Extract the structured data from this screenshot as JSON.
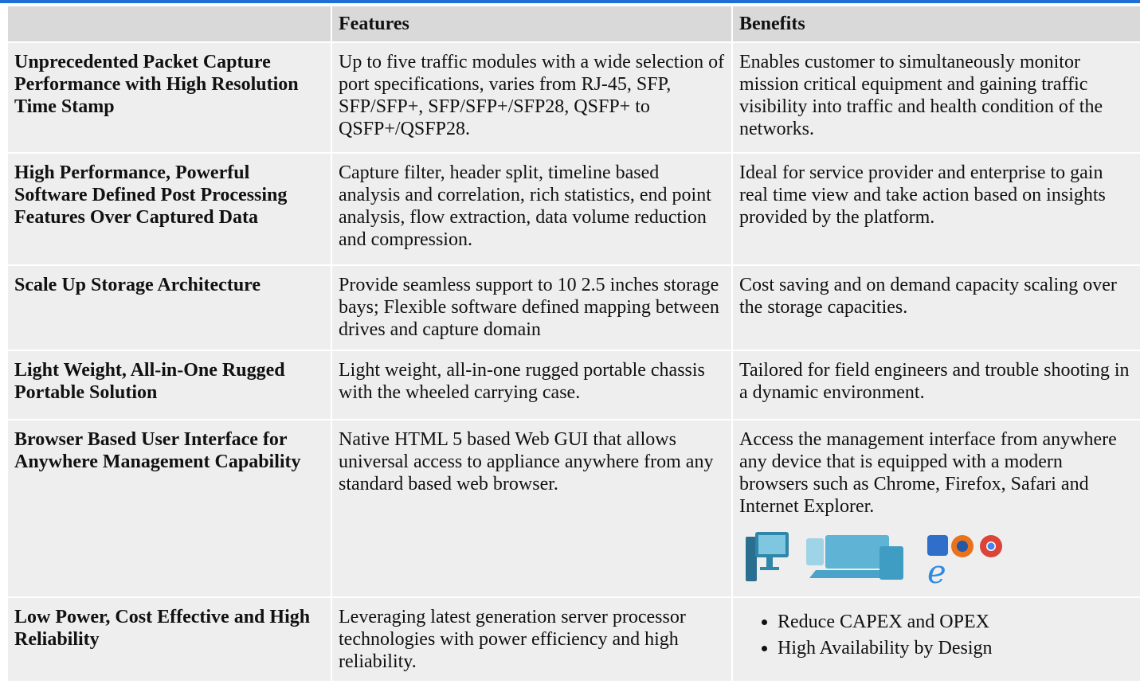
{
  "table": {
    "header": [
      "Features",
      "Benefits"
    ],
    "rows": [
      {
        "title": "Unprecedented Packet Capture Performance with High Resolution Time Stamp",
        "features": "Up to five traffic modules with a wide selection of port specifications, varies from RJ-45, SFP, SFP/SFP+, SFP/SFP+/SFP28, QSFP+ to QSFP+/QSFP28.",
        "benefits": "Enables customer to simultaneously monitor mission critical equipment and gaining traffic visibility into traffic and health condition of the networks."
      },
      {
        "title": "High Performance, Powerful Software Defined Post Processing Features Over Captured Data",
        "features": "Capture filter, header split, timeline based analysis and correlation, rich statistics, end point analysis, flow extraction, data volume reduction and compression.",
        "benefits": "Ideal for service provider and enterprise to gain real time view and take action based on insights provided by the platform."
      },
      {
        "title": "Scale Up Storage Architecture",
        "features": "Provide seamless support to 10 2.5 inches storage bays; Flexible software defined mapping between drives and capture domain",
        "benefits": "Cost saving and on demand capacity scaling over the storage capacities."
      },
      {
        "title": "Light Weight, All-in-One Rugged Portable Solution",
        "features": "Light weight, all-in-one rugged portable chassis with the wheeled carrying case.",
        "benefits": "Tailored for field engineers and trouble shooting in a dynamic environment."
      },
      {
        "title": "Browser Based User Interface for Anywhere Management Capability",
        "features": "Native HTML 5 based Web GUI that allows universal access to appliance anywhere from any standard based web browser.",
        "benefits": "Access the management interface from anywhere any device that is equipped with a modern browsers such as Chrome, Firefox, Safari and Internet Explorer."
      },
      {
        "title": "Low Power, Cost Effective and High Reliability",
        "features": "Leveraging latest generation server processor technologies with power efficiency and high reliability.",
        "benefits": [
          "Reduce CAPEX and OPEX",
          "High Availability by Design"
        ]
      }
    ]
  }
}
